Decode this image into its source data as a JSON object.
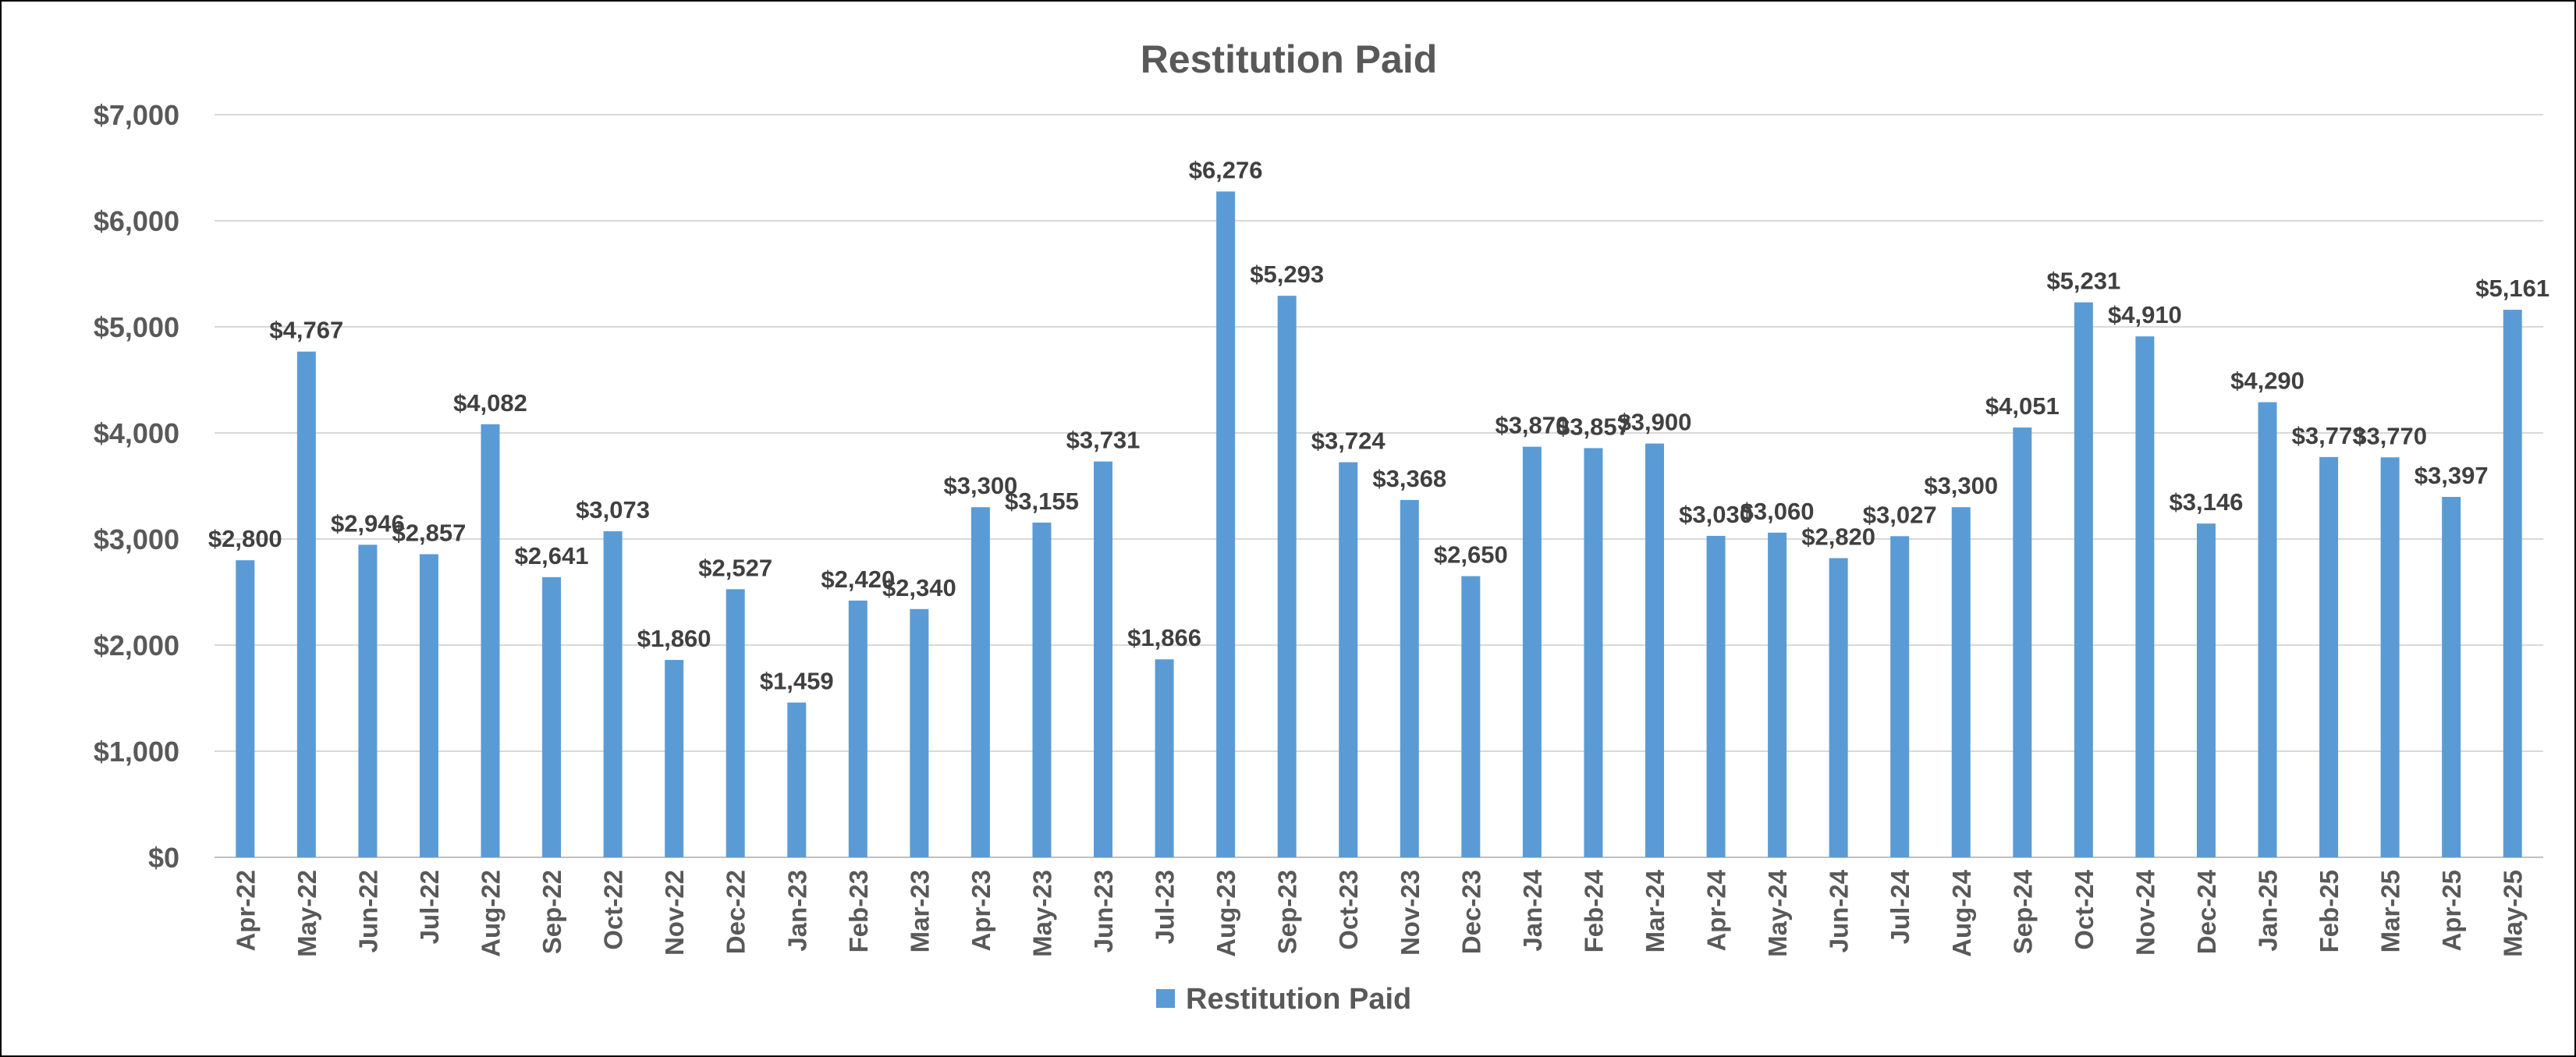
{
  "chart_data": {
    "type": "bar",
    "title": "Restitution Paid",
    "xlabel": "",
    "ylabel": "",
    "ylim": [
      0,
      7000
    ],
    "y_ticks": [
      "$0",
      "$1,000",
      "$2,000",
      "$3,000",
      "$4,000",
      "$5,000",
      "$6,000",
      "$7,000"
    ],
    "y_tick_values": [
      0,
      1000,
      2000,
      3000,
      4000,
      5000,
      6000,
      7000
    ],
    "grid": true,
    "legend_position": "bottom",
    "bar_color": "#5B9BD5",
    "categories": [
      "Apr-22",
      "May-22",
      "Jun-22",
      "Jul-22",
      "Aug-22",
      "Sep-22",
      "Oct-22",
      "Nov-22",
      "Dec-22",
      "Jan-23",
      "Feb-23",
      "Mar-23",
      "Apr-23",
      "May-23",
      "Jun-23",
      "Jul-23",
      "Aug-23",
      "Sep-23",
      "Oct-23",
      "Nov-23",
      "Dec-23",
      "Jan-24",
      "Feb-24",
      "Mar-24",
      "Apr-24",
      "May-24",
      "Jun-24",
      "Jul-24",
      "Aug-24",
      "Sep-24",
      "Oct-24",
      "Nov-24",
      "Dec-24",
      "Jan-25",
      "Feb-25",
      "Mar-25",
      "Apr-25",
      "May-25"
    ],
    "series": [
      {
        "name": "Restitution Paid",
        "values": [
          2800,
          4767,
          2946,
          2857,
          4082,
          2641,
          3073,
          1860,
          2527,
          1459,
          2420,
          2340,
          3300,
          3155,
          3731,
          1866,
          6276,
          5293,
          3724,
          3368,
          2650,
          3870,
          3857,
          3900,
          3030,
          3060,
          2820,
          3027,
          3300,
          4051,
          5231,
          4910,
          3146,
          4290,
          3773,
          3770,
          3397,
          5161
        ],
        "labels": [
          "$2,800",
          "$4,767",
          "$2,946",
          "$2,857",
          "$4,082",
          "$2,641",
          "$3,073",
          "$1,860",
          "$2,527",
          "$1,459",
          "$2,420",
          "$2,340",
          "$3,300",
          "$3,155",
          "$3,731",
          "$1,866",
          "$6,276",
          "$5,293",
          "$3,724",
          "$3,368",
          "$2,650",
          "$3,870",
          "$3,857",
          "$3,900",
          "$3,030",
          "$3,060",
          "$2,820",
          "$3,027",
          "$3,300",
          "$4,051",
          "$5,231",
          "$4,910",
          "$3,146",
          "$4,290",
          "$3,773",
          "$3,770",
          "$3,397",
          "$5,161"
        ]
      }
    ]
  }
}
